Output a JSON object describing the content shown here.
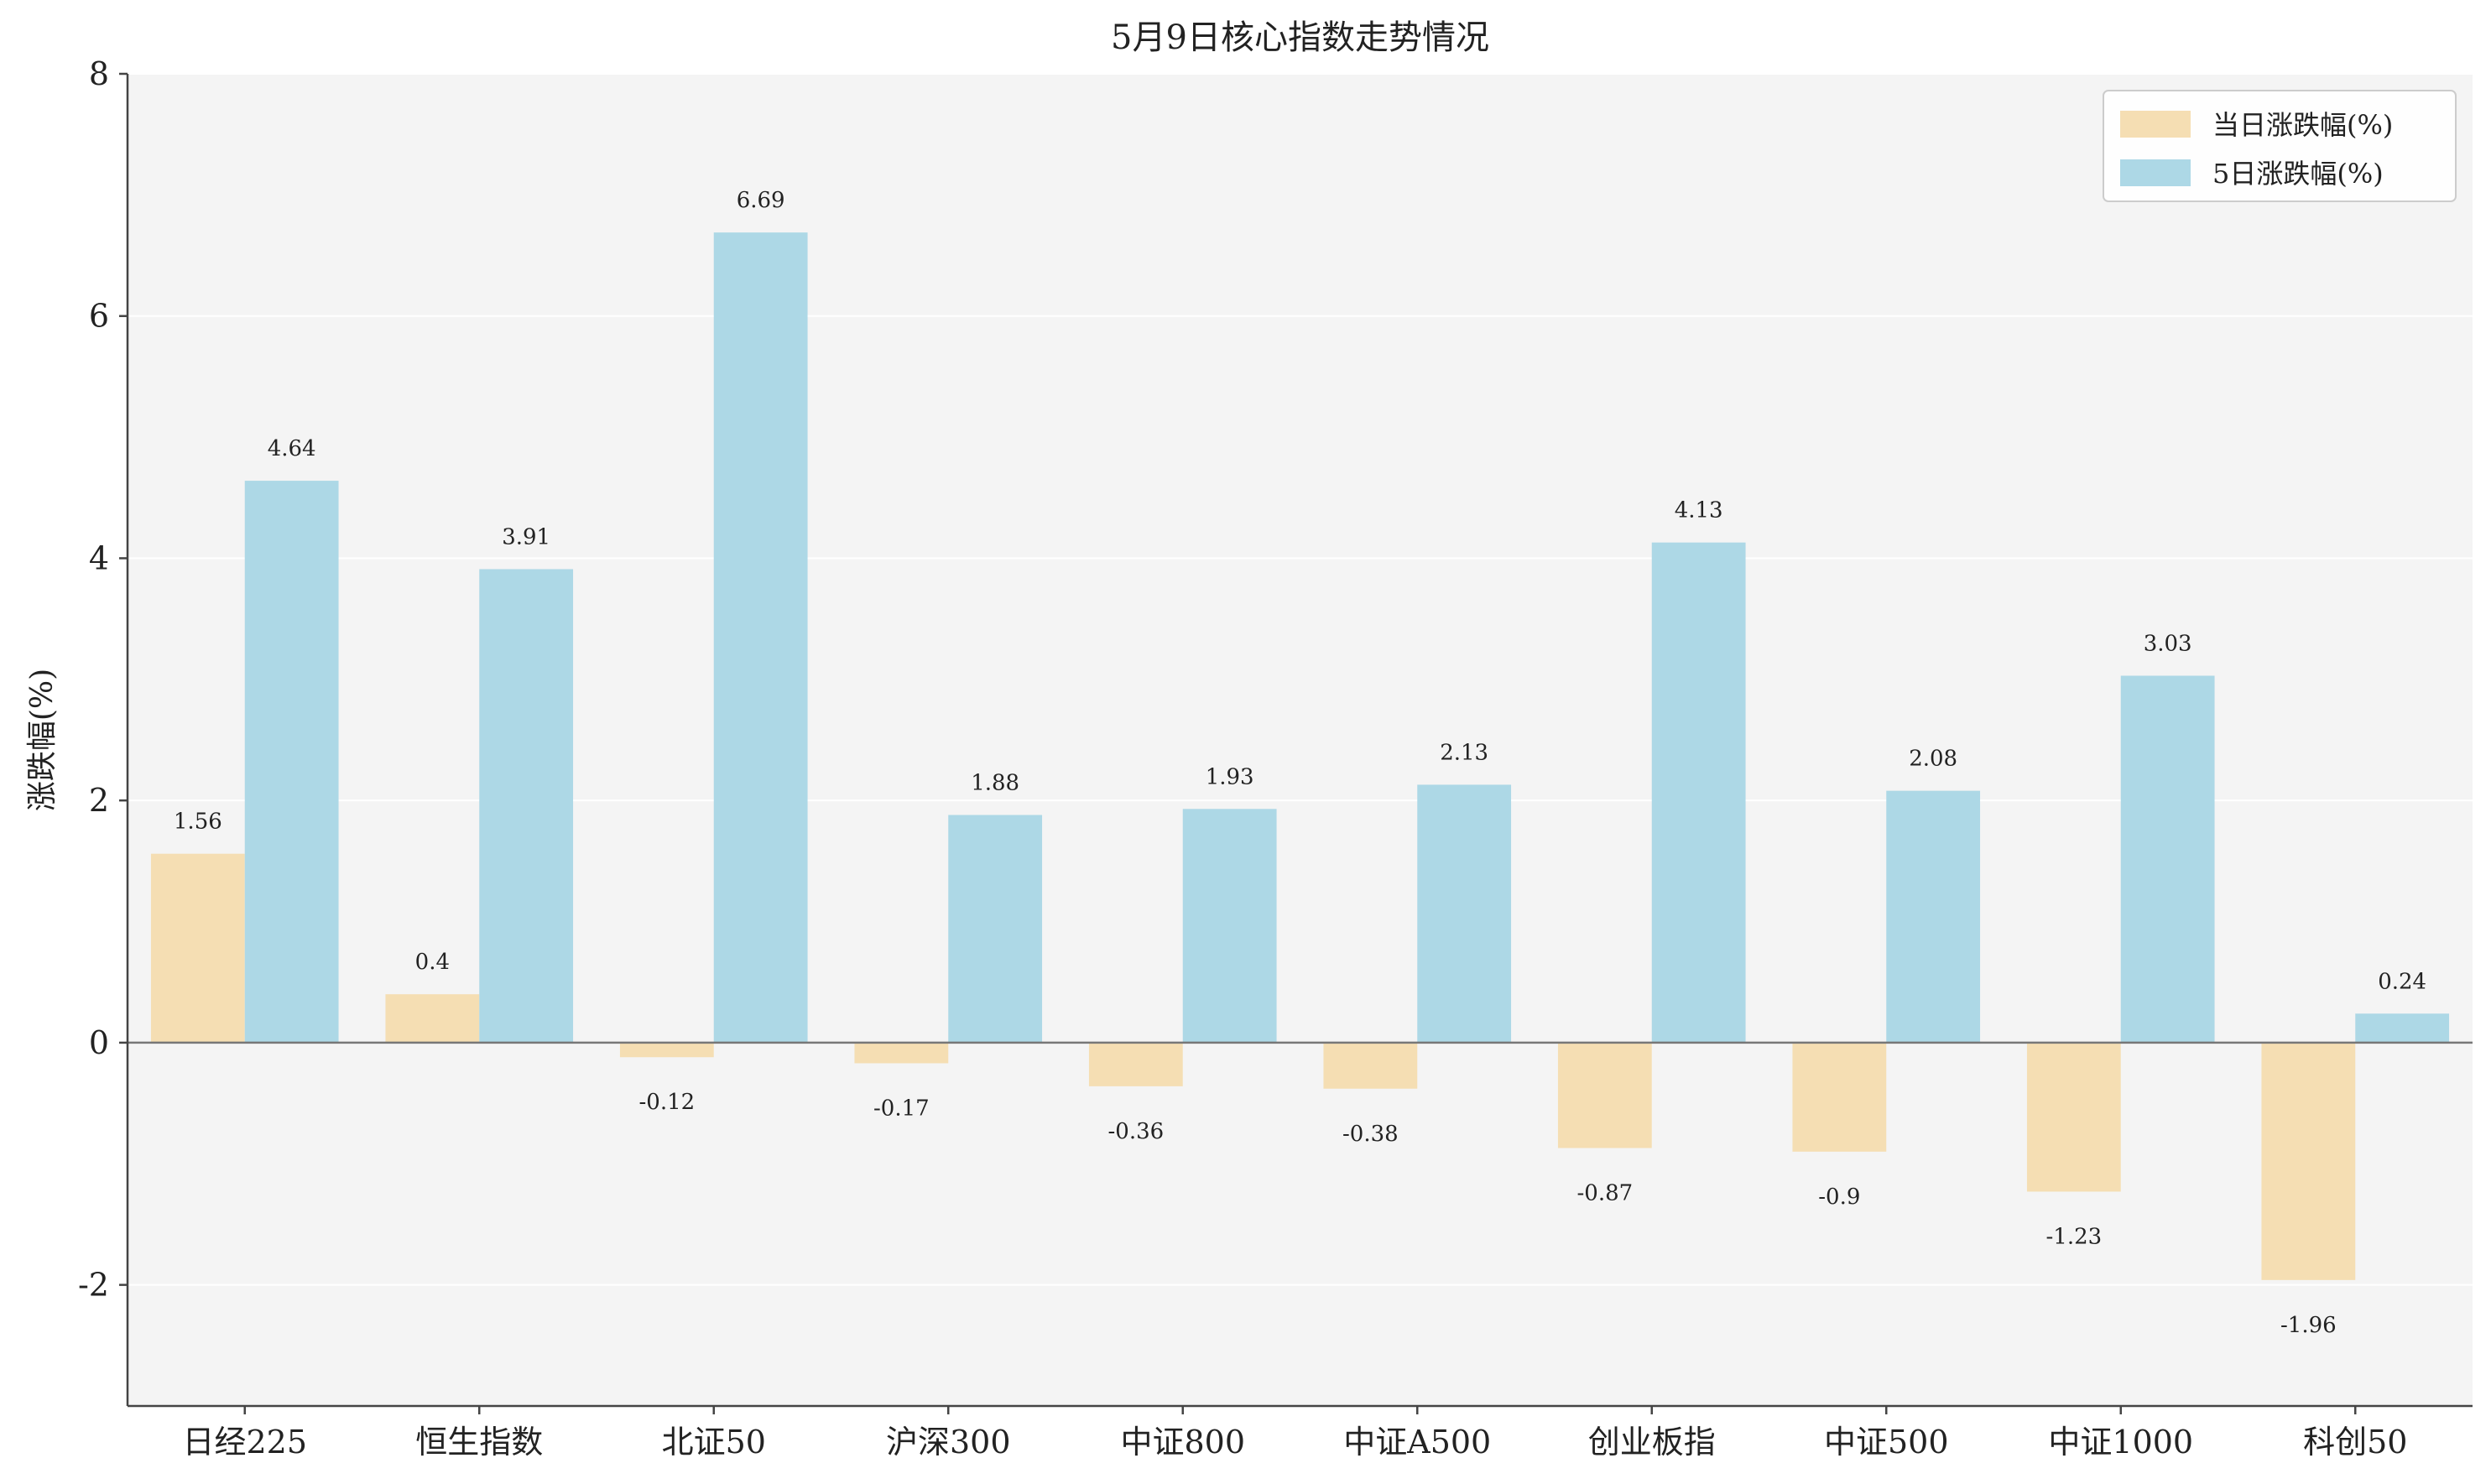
{
  "chart_data": {
    "type": "bar",
    "title": "5月9日核心指数走势情况",
    "xlabel": "",
    "ylabel": "涨跌幅(%)",
    "ylim": [
      -3,
      8
    ],
    "yticks": [
      -2,
      0,
      2,
      4,
      6,
      8
    ],
    "grid": true,
    "legend_position": "top-right",
    "categories": [
      "日经225",
      "恒生指数",
      "北证50",
      "沪深300",
      "中证800",
      "中证A500",
      "创业板指",
      "中证500",
      "中证1000",
      "科创50"
    ],
    "series": [
      {
        "name": "当日涨跌幅(%)",
        "color": "#F5DEB3",
        "values": [
          1.56,
          0.4,
          -0.12,
          -0.17,
          -0.36,
          -0.38,
          -0.87,
          -0.9,
          -1.23,
          -1.96
        ]
      },
      {
        "name": "5日涨跌幅(%)",
        "color": "#ADD8E6",
        "values": [
          4.64,
          3.91,
          6.69,
          1.88,
          1.93,
          2.13,
          4.13,
          2.08,
          3.03,
          0.24
        ]
      }
    ],
    "plot_background": "#F4F4F4"
  }
}
